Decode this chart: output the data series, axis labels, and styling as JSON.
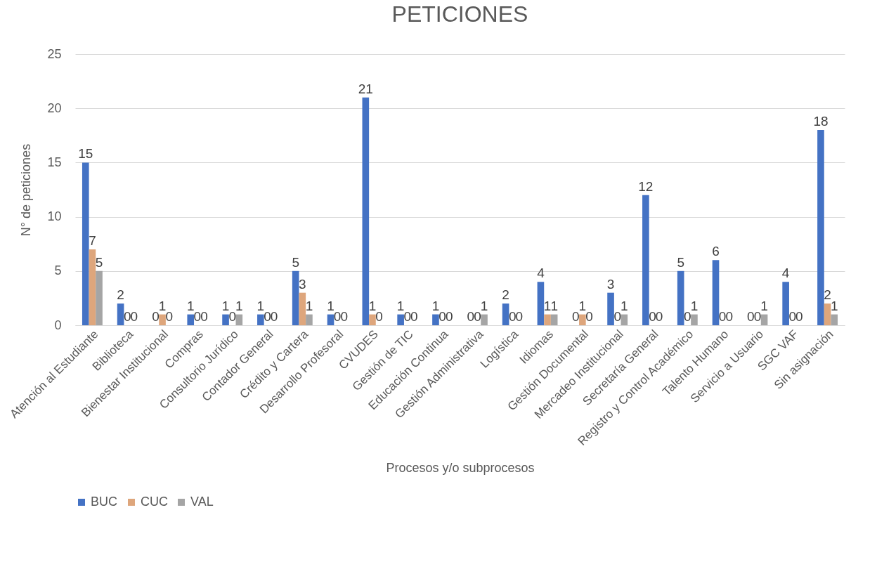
{
  "chart_data": {
    "type": "bar",
    "title": "PETICIONES",
    "xlabel": "Procesos y/o subprocesos",
    "ylabel": "N° de peticiones",
    "categories": [
      "Atención al Estudiante",
      "Biblioteca",
      "Bienestar Institucional",
      "Compras",
      "Consultorio Jurídico",
      "Contador General",
      "Crédito y Cartera",
      "Desarrollo Profesoral",
      "CVUDES",
      "Gestión de TIC",
      "Educación Continua",
      "Gestión Administrativa",
      "Logística",
      "Idiomas",
      "Gestión Documental",
      "Mercadeo Institucional",
      "Secretaría General",
      "Registro y Control Académico",
      "Talento Humano",
      "Servicio a Usuario",
      "SGC VAF",
      "Sin asignación"
    ],
    "series": [
      {
        "name": "BUC",
        "color": "#4472c4",
        "values": [
          15,
          2,
          0,
          1,
          1,
          1,
          5,
          1,
          21,
          1,
          1,
          0,
          2,
          4,
          0,
          3,
          12,
          5,
          6,
          0,
          4,
          18
        ]
      },
      {
        "name": "CUC",
        "color": "#dea67c",
        "values": [
          7,
          0,
          1,
          0,
          0,
          0,
          3,
          0,
          1,
          0,
          0,
          0,
          0,
          1,
          1,
          0,
          0,
          0,
          0,
          0,
          0,
          2
        ]
      },
      {
        "name": "VAL",
        "color": "#a5a5a5",
        "values": [
          5,
          0,
          0,
          0,
          1,
          0,
          1,
          0,
          0,
          0,
          0,
          1,
          0,
          1,
          0,
          1,
          0,
          1,
          0,
          1,
          0,
          1
        ]
      }
    ],
    "ylim": [
      0,
      25
    ],
    "yticks": [
      0,
      5,
      10,
      15,
      20,
      25
    ],
    "grid": "y",
    "legend": "bottom",
    "data_labels": true
  }
}
